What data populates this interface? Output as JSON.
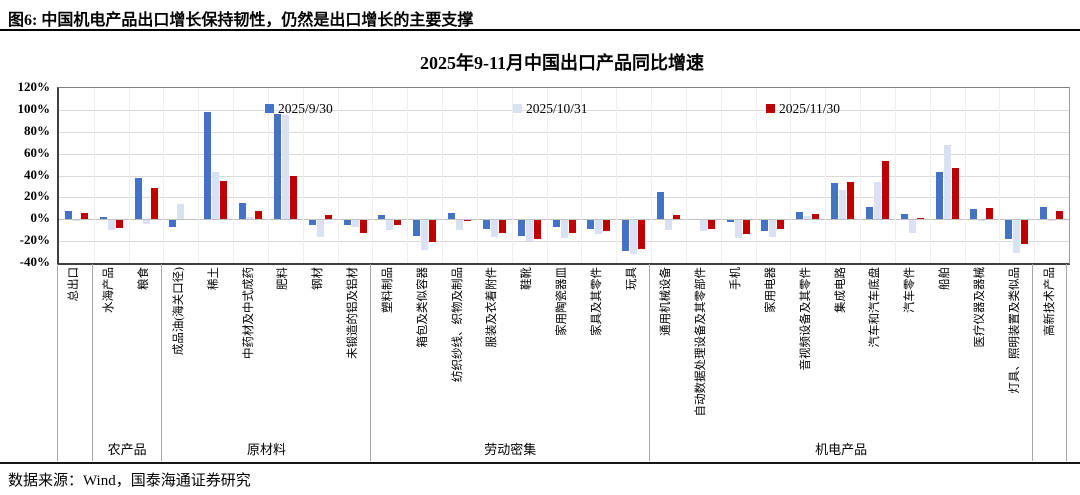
{
  "figure": {
    "caption": "图6: 中国机电产品出口增长保持韧性，仍然是出口增长的主要支撑",
    "source": "数据来源：Wind，国泰海通证券研究"
  },
  "chart_data": {
    "type": "bar",
    "title": "2025年9-11月中国出口产品同比增速",
    "xlabel": "",
    "ylabel": "",
    "unit": "%",
    "ylim": [
      -40,
      120
    ],
    "ytick_step": 20,
    "grid": true,
    "legend_position": "top-inside",
    "categories": [
      "总出口",
      "水海产品",
      "粮食",
      "成品油(海关口径)",
      "稀土",
      "中药材及中式成药",
      "肥料",
      "钢材",
      "未锻造的铝及铝材",
      "塑料制品",
      "箱包及类似容器",
      "纺织纱线、织物及制品",
      "服装及衣着附件",
      "鞋靴",
      "家用陶瓷器皿",
      "家具及其零件",
      "玩具",
      "通用机械设备",
      "自动数据处理设备及其零部件",
      "手机",
      "家用电器",
      "音视频设备及其零件",
      "集成电路",
      "汽车和汽车底盘",
      "汽车零件",
      "船舶",
      "医疗仪器及器械",
      "灯具、照明装置及类似品",
      "高新技术产品"
    ],
    "series": [
      {
        "name": "2025/9/30",
        "color": "#4472C4",
        "values": [
          8,
          2,
          38,
          -6,
          98,
          15,
          96,
          -4,
          -4,
          4,
          -14,
          6,
          -8,
          -14,
          -6,
          -8,
          -28,
          25,
          0,
          -2,
          -10,
          7,
          33,
          11,
          5,
          43,
          9,
          -17,
          11
        ]
      },
      {
        "name": "2025/10/31",
        "color": "#D9E1F2",
        "values": [
          -1,
          -9,
          -3,
          14,
          43,
          2,
          95,
          -15,
          -6,
          -9,
          -27,
          -9,
          -15,
          -19,
          -16,
          -13,
          -31,
          -9,
          -10,
          -16,
          -15,
          3,
          27,
          34,
          -12,
          68,
          -1,
          -30,
          -1
        ]
      },
      {
        "name": "2025/11/30",
        "color": "#C00000",
        "values": [
          6,
          -7,
          29,
          0,
          35,
          8,
          40,
          4,
          -12,
          -4,
          -20,
          -1,
          -12,
          -17,
          -12,
          -10,
          -26,
          4,
          -8,
          -13,
          -8,
          5,
          34,
          53,
          1,
          47,
          10,
          -22,
          8
        ]
      }
    ],
    "category_groups": [
      {
        "label": "",
        "span": [
          0,
          0
        ]
      },
      {
        "label": "农产品",
        "span": [
          1,
          2
        ]
      },
      {
        "label": "原材料",
        "span": [
          3,
          8
        ]
      },
      {
        "label": "劳动密集",
        "span": [
          9,
          16
        ]
      },
      {
        "label": "机电产品",
        "span": [
          17,
          27
        ]
      },
      {
        "label": "",
        "span": [
          28,
          28
        ]
      }
    ],
    "legend_x_offsets": [
      208,
      456,
      709
    ]
  }
}
